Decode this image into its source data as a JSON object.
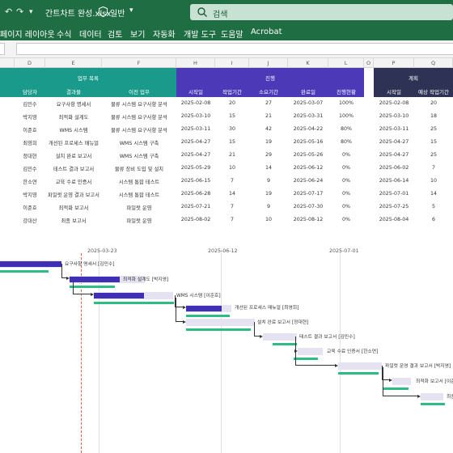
{
  "titlebar": {
    "filename": "간트차트 완성.xlsx",
    "sensitivity": "일반",
    "search_placeholder": "검색"
  },
  "ribbon": {
    "tabs": [
      "페이지 레이아웃",
      "수식",
      "데이터",
      "검토",
      "보기",
      "자동화",
      "개발 도구",
      "도움말",
      "Acrobat"
    ]
  },
  "columns": [
    "D",
    "E",
    "F",
    "H",
    "I",
    "J",
    "K",
    "L",
    "O",
    "P",
    "Q"
  ],
  "table": {
    "group_work": "업무 목록",
    "group_progress": "진행",
    "group_plan": "계획",
    "col_owner": "담당자",
    "col_output": "결과물",
    "col_prev": "이전 업무",
    "col_start": "시작일",
    "col_workdays": "작업기간",
    "col_used": "소요기간",
    "col_done": "완료일",
    "col_status": "진행현황",
    "col_plan_start": "시작일",
    "col_plan_days": "예상 작업기간",
    "rows": [
      {
        "owner": "김민수",
        "output": "요구사항 명세서",
        "prev": "물류 시스템 요구사항 분석",
        "start": "2025-02-08",
        "workdays": "20",
        "used": "27",
        "done": "2025-03-07",
        "status": "100%",
        "plan_start": "2025-02-08",
        "plan_days": "20"
      },
      {
        "owner": "박지영",
        "output": "최적화 설계도",
        "prev": "물류 시스템 요구사항 분석",
        "start": "2025-03-10",
        "workdays": "15",
        "used": "21",
        "done": "2025-03-31",
        "status": "100%",
        "plan_start": "2025-03-10",
        "plan_days": "18"
      },
      {
        "owner": "이준호",
        "output": "WMS 시스템",
        "prev": "물류 시스템 요구사항 분석",
        "start": "2025-03-11",
        "workdays": "30",
        "used": "42",
        "done": "2025-04-22",
        "status": "80%",
        "plan_start": "2025-03-11",
        "plan_days": "25"
      },
      {
        "owner": "최영희",
        "output": "개선된 프로세스 매뉴얼",
        "prev": "WMS 시스템 구축",
        "start": "2025-04-27",
        "workdays": "15",
        "used": "19",
        "done": "2025-05-16",
        "status": "80%",
        "plan_start": "2025-04-27",
        "plan_days": "15"
      },
      {
        "owner": "정대현",
        "output": "설치 완료 보고서",
        "prev": "WMS 시스템 구축",
        "start": "2025-04-27",
        "workdays": "21",
        "used": "29",
        "done": "2025-05-26",
        "status": "0%",
        "plan_start": "2025-04-27",
        "plan_days": "25"
      },
      {
        "owner": "김민수",
        "output": "테스트 결과 보고서",
        "prev": "물류 장비 도입 및 설치",
        "start": "2025-05-29",
        "workdays": "10",
        "used": "14",
        "done": "2025-06-12",
        "status": "0%",
        "plan_start": "2025-06-02",
        "plan_days": "7"
      },
      {
        "owner": "한소연",
        "output": "교육 수료 인증서",
        "prev": "시스템 통합 테스트",
        "start": "2025-06-15",
        "workdays": "7",
        "used": "9",
        "done": "2025-06-24",
        "status": "0%",
        "plan_start": "2025-06-14",
        "plan_days": "10"
      },
      {
        "owner": "박지영",
        "output": "파일럿 운영 결과 보고서",
        "prev": "시스템 통합 테스트",
        "start": "2025-06-28",
        "workdays": "14",
        "used": "19",
        "done": "2025-07-17",
        "status": "0%",
        "plan_start": "2025-07-01",
        "plan_days": "14"
      },
      {
        "owner": "이준호",
        "output": "최적화 보고서",
        "prev": "파일럿 운영",
        "start": "2025-07-21",
        "workdays": "7",
        "used": "9",
        "done": "2025-07-30",
        "status": "0%",
        "plan_start": "2025-07-25",
        "plan_days": "5"
      },
      {
        "owner": "강대산",
        "output": "최종 보고서",
        "prev": "파일럿 운영",
        "start": "2025-08-02",
        "workdays": "7",
        "used": "10",
        "done": "2025-08-12",
        "status": "0%",
        "plan_start": "2025-08-04",
        "plan_days": "6"
      }
    ]
  },
  "gantt": {
    "dates": [
      "2025-03-23",
      "2025-06-12",
      "2025-07-01"
    ],
    "bars": [
      {
        "label": "요구사항 명세서 [김민수]"
      },
      {
        "label": "최적화 설계도 [박지영]"
      },
      {
        "label": "WMS 시스템 [이준호]"
      },
      {
        "label": "개선된 프로세스 매뉴얼 [최영희]"
      },
      {
        "label": "설치 완료 보고서 [정대현]"
      },
      {
        "label": "테스트 결과 보고서 [김민수]"
      },
      {
        "label": "교육 수료 인증서 [한소연]"
      },
      {
        "label": "파일럿 운영 결과 보고서 [박지영]"
      },
      {
        "label": "최적화 보고서 [이준"
      },
      {
        "label": "최종"
      }
    ]
  },
  "colors": {
    "excel_green": "#1f6e43",
    "header_teal": "#1a9a8a",
    "header_purple": "#4b39b8",
    "header_navy": "#2e3355",
    "plan_bar": "#3f2fb4",
    "actual_bar": "#2dbd84",
    "today_line": "#e55a4a"
  }
}
